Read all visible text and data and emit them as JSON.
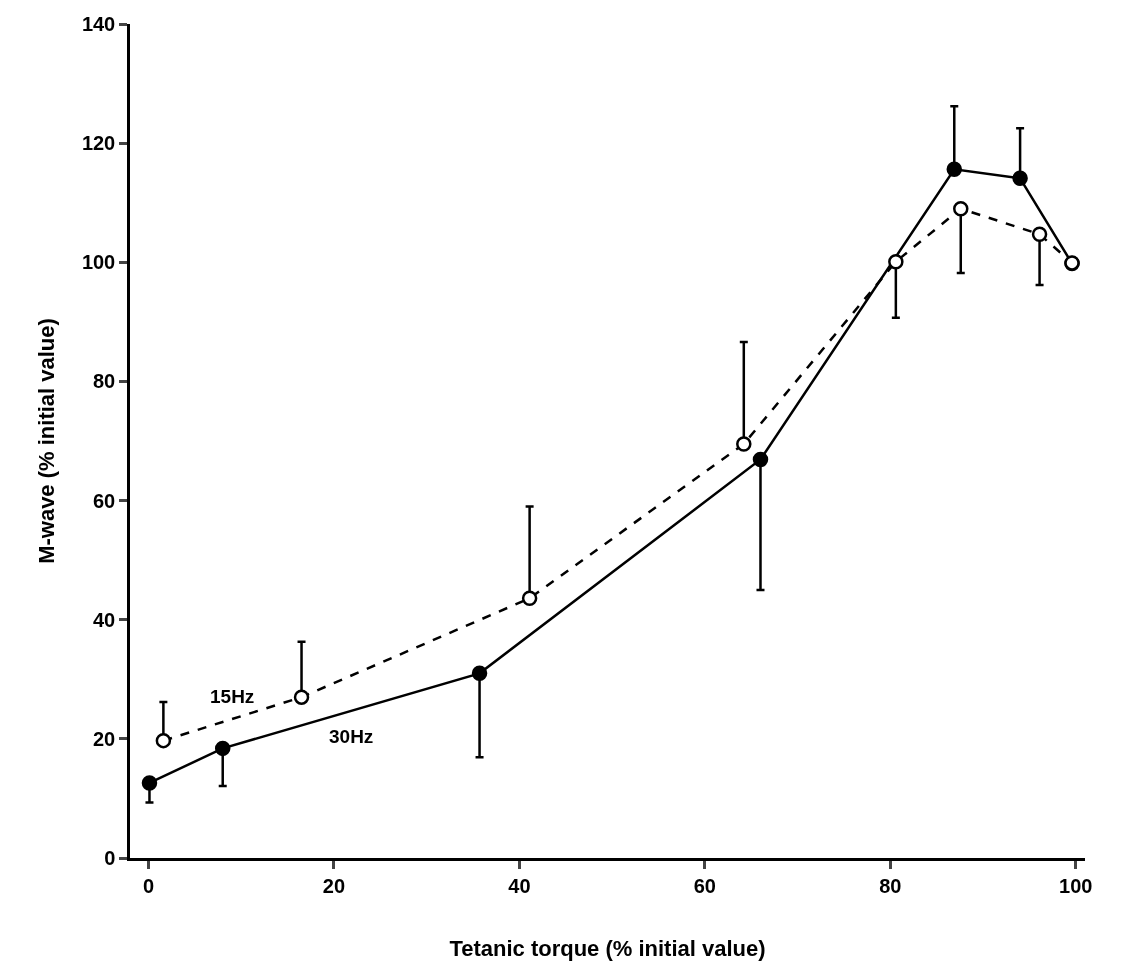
{
  "chart_data": {
    "type": "line",
    "xlabel": "Tetanic torque (% initial value)",
    "ylabel": "M-wave (% initial value)",
    "xlim": [
      -2,
      101
    ],
    "xticks": [
      0,
      20,
      40,
      60,
      80,
      100
    ],
    "ylim": [
      0,
      140
    ],
    "yticks": [
      0,
      20,
      40,
      60,
      80,
      100,
      120,
      140
    ],
    "grid": false,
    "legend": false,
    "marker": "circle",
    "series": [
      {
        "name": "30Hz",
        "color": "#000000",
        "line_style": "solid",
        "x": [
          0.1,
          8.0,
          35.7,
          66.0,
          86.9,
          94.0,
          99.6
        ],
        "values": [
          12.6,
          18.4,
          31.0,
          66.9,
          115.6,
          114.1,
          99.8
        ],
        "errors": [
          [
            9.3,
            12.6
          ],
          [
            12.1,
            18.4
          ],
          [
            16.9,
            31.0
          ],
          [
            45.0,
            66.9
          ],
          [
            115.6,
            126.2
          ],
          [
            114.1,
            122.5
          ],
          null
        ]
      },
      {
        "name": "15Hz",
        "color": "#000000",
        "line_style": "dashed",
        "x": [
          1.6,
          16.5,
          41.1,
          64.2,
          80.6,
          87.6,
          96.1,
          99.6
        ],
        "values": [
          19.7,
          27.0,
          43.6,
          69.5,
          100.1,
          109.0,
          104.7,
          99.9
        ],
        "errors": [
          [
            19.7,
            26.2
          ],
          [
            27.0,
            36.3
          ],
          [
            43.6,
            59.0
          ],
          [
            69.5,
            86.6
          ],
          [
            90.7,
            100.1
          ],
          [
            98.2,
            109.0
          ],
          [
            96.2,
            104.7
          ],
          null
        ]
      }
    ]
  }
}
